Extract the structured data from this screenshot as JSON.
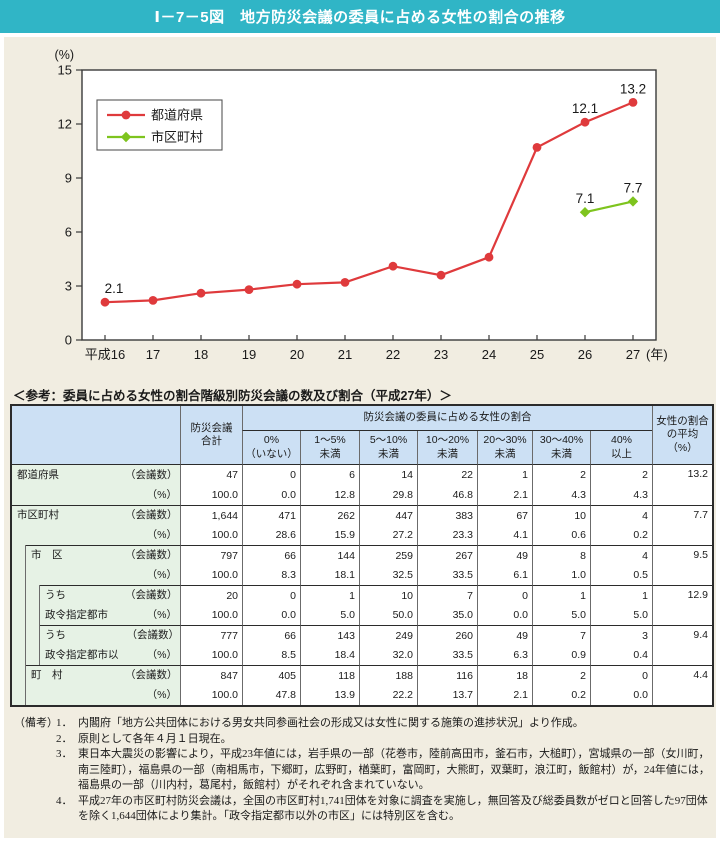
{
  "title": "Ⅰ－7－5図　地方防災会議の委員に占める女性の割合の推移",
  "chart_data": {
    "type": "line",
    "categories": [
      "平成16",
      "17",
      "18",
      "19",
      "20",
      "21",
      "22",
      "23",
      "24",
      "25",
      "26",
      "27"
    ],
    "x_suffix": "(年)",
    "ylabel": "(%)",
    "ylim": [
      0,
      15
    ],
    "yticks": [
      0,
      3,
      6,
      9,
      12,
      15
    ],
    "grid": false,
    "legend_position": "top-left",
    "series": [
      {
        "name": "都道府県",
        "color": "#df3a3c",
        "marker": "circle",
        "values": [
          2.1,
          2.2,
          2.6,
          2.8,
          3.1,
          3.2,
          4.1,
          3.6,
          4.6,
          10.7,
          12.1,
          13.2
        ],
        "point_labels": {
          "0": "2.1",
          "10": "12.1",
          "11": "13.2"
        }
      },
      {
        "name": "市区町村",
        "color": "#7ec41e",
        "marker": "diamond",
        "values": [
          null,
          null,
          null,
          null,
          null,
          null,
          null,
          null,
          null,
          null,
          7.1,
          7.7
        ],
        "point_labels": {
          "10": "7.1",
          "11": "7.7"
        }
      }
    ]
  },
  "table": {
    "caption": "＜参考：委員に占める女性の割合階級別防災会議の数及び割合（平成27年）＞",
    "header": {
      "total_lines": [
        "防災会議",
        "合計"
      ],
      "group": "防災会議の委員に占める女性の割合",
      "ranges": [
        [
          "0%",
          "（いない）"
        ],
        [
          "1～5%",
          "未満"
        ],
        [
          "5～10%",
          "未満"
        ],
        [
          "10～20%",
          "未満"
        ],
        [
          "20～30%",
          "未満"
        ],
        [
          "30～40%",
          "未満"
        ],
        [
          "40%",
          "以上"
        ]
      ],
      "avg_lines": [
        "女性の割合",
        "の平均",
        "（%）"
      ]
    },
    "unit_labels": [
      "（会議数）",
      "（%）"
    ],
    "rows": [
      {
        "name_lines": [
          "都道府県"
        ],
        "level": 0,
        "counts": [
          "47",
          "0",
          "6",
          "14",
          "22",
          "1",
          "2",
          "2"
        ],
        "pcts": [
          "100.0",
          "0.0",
          "12.8",
          "29.8",
          "46.8",
          "2.1",
          "4.3",
          "4.3"
        ],
        "avg": "13.2"
      },
      {
        "name_lines": [
          "市区町村"
        ],
        "level": 0,
        "counts": [
          "1,644",
          "471",
          "262",
          "447",
          "383",
          "67",
          "10",
          "4"
        ],
        "pcts": [
          "100.0",
          "28.6",
          "15.9",
          "27.2",
          "23.3",
          "4.1",
          "0.6",
          "0.2"
        ],
        "avg": "7.7"
      },
      {
        "name_lines": [
          "市　区"
        ],
        "level": 1,
        "counts": [
          "797",
          "66",
          "144",
          "259",
          "267",
          "49",
          "8",
          "4"
        ],
        "pcts": [
          "100.0",
          "8.3",
          "18.1",
          "32.5",
          "33.5",
          "6.1",
          "1.0",
          "0.5"
        ],
        "avg": "9.5"
      },
      {
        "name_lines": [
          "うち",
          "政令指定都市"
        ],
        "level": 2,
        "counts": [
          "20",
          "0",
          "1",
          "10",
          "7",
          "0",
          "1",
          "1"
        ],
        "pcts": [
          "100.0",
          "0.0",
          "5.0",
          "50.0",
          "35.0",
          "0.0",
          "5.0",
          "5.0"
        ],
        "avg": "12.9"
      },
      {
        "name_lines": [
          "うち",
          "政令指定都市以外"
        ],
        "level": 2,
        "counts": [
          "777",
          "66",
          "143",
          "249",
          "260",
          "49",
          "7",
          "3"
        ],
        "pcts": [
          "100.0",
          "8.5",
          "18.4",
          "32.0",
          "33.5",
          "6.3",
          "0.9",
          "0.4"
        ],
        "avg": "9.4"
      },
      {
        "name_lines": [
          "町　村"
        ],
        "level": 1,
        "counts": [
          "847",
          "405",
          "118",
          "188",
          "116",
          "18",
          "2",
          "0"
        ],
        "pcts": [
          "100.0",
          "47.8",
          "13.9",
          "22.2",
          "13.7",
          "2.1",
          "0.2",
          "0.0"
        ],
        "avg": "4.4"
      }
    ]
  },
  "notes": {
    "prefix": "（備考）",
    "items": [
      {
        "num": "1．",
        "text": "内閣府「地方公共団体における男女共同参画社会の形成又は女性に関する施策の進捗状況」より作成。"
      },
      {
        "num": "2．",
        "text": "原則として各年４月１日現在。"
      },
      {
        "num": "3．",
        "text": "東日本大震災の影響により，平成23年値には，岩手県の一部（花巻市，陸前高田市，釜石市，大槌町），宮城県の一部（女川町，南三陸町），福島県の一部（南相馬市，下郷町，広野町，楢葉町，富岡町，大熊町，双葉町，浪江町，飯館村）が，24年値には，福島県の一部（川内村，葛尾村，飯館村）がそれぞれ含まれていない。"
      },
      {
        "num": "4．",
        "text": "平成27年の市区町村防災会議は，全国の市区町村1,741団体を対象に調査を実施し，無回答及び総委員数がゼロと回答した97団体を除く1,644団体により集計。「政令指定都市以外の市区」には特別区を含む。"
      }
    ]
  }
}
